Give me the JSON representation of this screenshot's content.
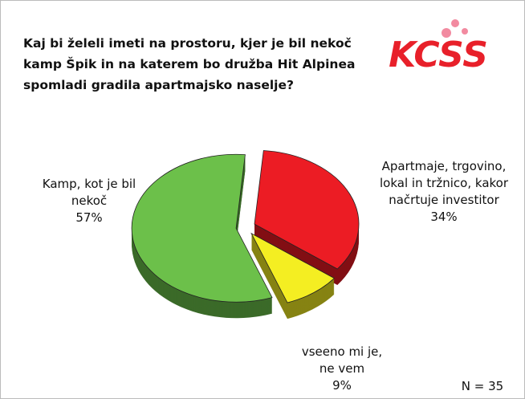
{
  "chart_data": {
    "type": "pie",
    "title": "Kaj bi želeli imeti na prostoru, kjer je bil nekoč kamp Špik in na katerem bo družba Hit Alpinea spomladi gradila apartmajsko naselje?",
    "logo": "KCSS",
    "categories": [
      "Kamp, kot je bil nekoč",
      "Apartmaje, trgovino, lokal in tržnico, kakor načrtuje investitor",
      "vseeno mi je, ne vem"
    ],
    "values": [
      57,
      34,
      9
    ],
    "value_labels": [
      "57%",
      "34%",
      "9%"
    ],
    "colors": [
      "#6cc04a",
      "#ec1c24",
      "#f4ee22"
    ],
    "annotation": "N = 35"
  }
}
